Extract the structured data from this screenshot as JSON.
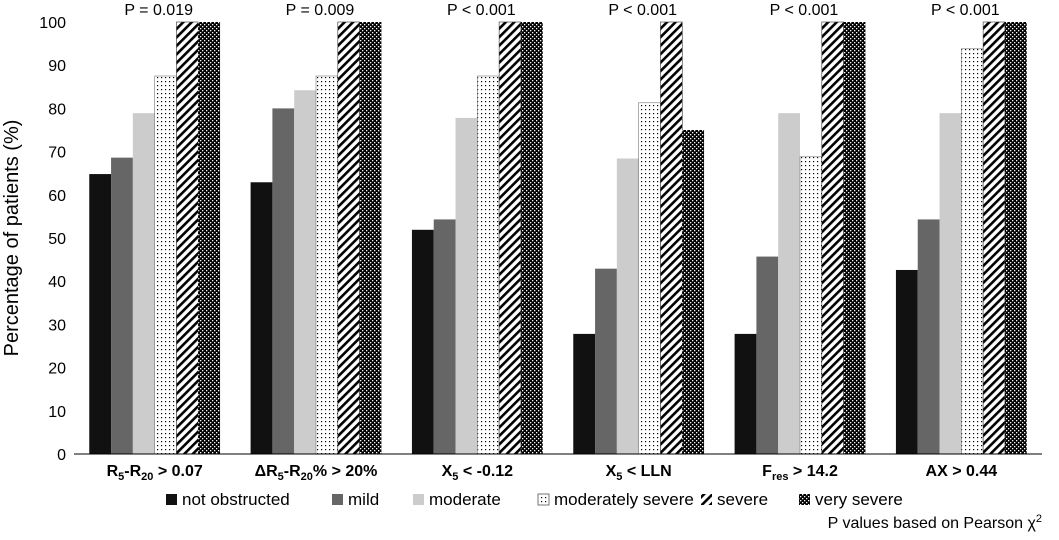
{
  "chart_data": {
    "type": "bar",
    "ylabel": "Percentage of patients (%)",
    "ylim": [
      0,
      100
    ],
    "yticks": [
      "0",
      "10",
      "20",
      "30",
      "40",
      "50",
      "60",
      "70",
      "80",
      "90",
      "100"
    ],
    "categories": [
      {
        "base": "R",
        "sub1": "5",
        "mid": "-R",
        "sub2": "20",
        "rest": " > 0.07"
      },
      {
        "base": "ΔR",
        "sub1": "5",
        "mid": "-R",
        "sub2": "20",
        "rest": "% > 20%"
      },
      {
        "base": "X",
        "sub1": "5",
        "mid": "",
        "sub2": "",
        "rest": " < -0.12"
      },
      {
        "base": "X",
        "sub1": "5",
        "mid": "",
        "sub2": "",
        "rest": " < LLN"
      },
      {
        "base": "F",
        "sub1": "res",
        "mid": "",
        "sub2": "",
        "rest": " > 14.2"
      },
      {
        "base": "AX > 0.44",
        "sub1": "",
        "mid": "",
        "sub2": "",
        "rest": ""
      }
    ],
    "p_values": [
      "P = 0.019",
      "P = 0.009",
      "P < 0.001",
      "P < 0.001",
      "P < 0.001",
      "P < 0.001"
    ],
    "series": [
      {
        "name": "not obstructed",
        "values": [
          64.8,
          62.9,
          51.9,
          27.8,
          27.8,
          42.6
        ]
      },
      {
        "name": "mild",
        "values": [
          68.6,
          80.0,
          54.3,
          42.9,
          45.7,
          54.3
        ]
      },
      {
        "name": "moderate",
        "values": [
          78.9,
          84.2,
          77.8,
          68.4,
          78.9,
          78.9
        ]
      },
      {
        "name": "moderately severe",
        "values": [
          87.5,
          87.5,
          87.5,
          81.3,
          68.8,
          93.8
        ]
      },
      {
        "name": "severe",
        "values": [
          100,
          100,
          100,
          100,
          100,
          100
        ]
      },
      {
        "name": "very severe",
        "values": [
          100,
          100,
          100,
          75,
          100,
          100
        ]
      }
    ],
    "note": {
      "text": "P values based on Pearson χ",
      "sup": "2"
    }
  }
}
